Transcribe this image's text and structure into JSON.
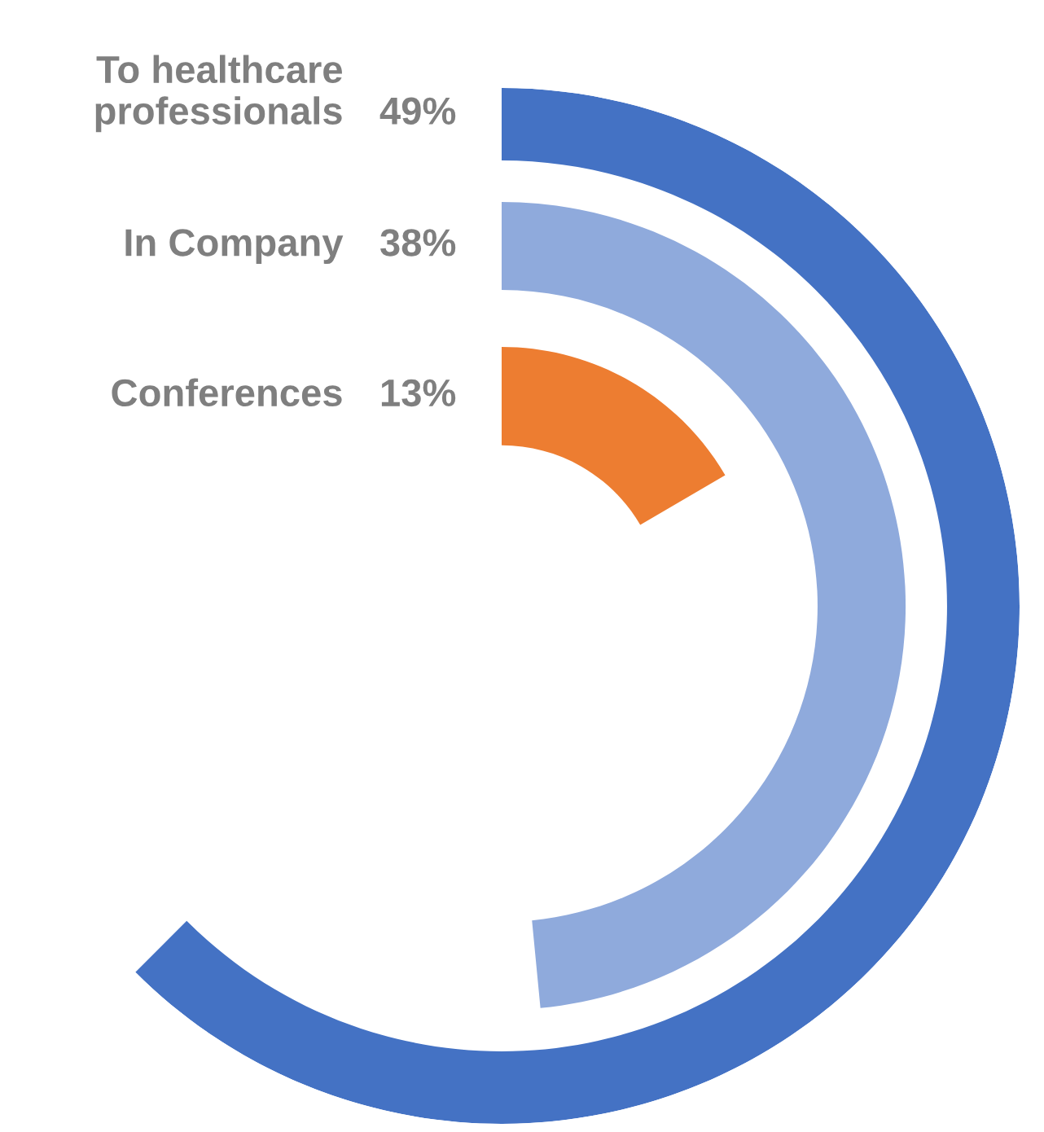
{
  "chart_data": {
    "type": "other",
    "categories": [
      "To healthcare\nprofessionals",
      "In Company",
      "Conferences"
    ],
    "values": [
      49,
      38,
      13
    ],
    "value_labels": [
      "49%",
      "38%",
      "13%"
    ],
    "colors": [
      "#4472c4",
      "#8faadc",
      "#ed7d31"
    ]
  }
}
